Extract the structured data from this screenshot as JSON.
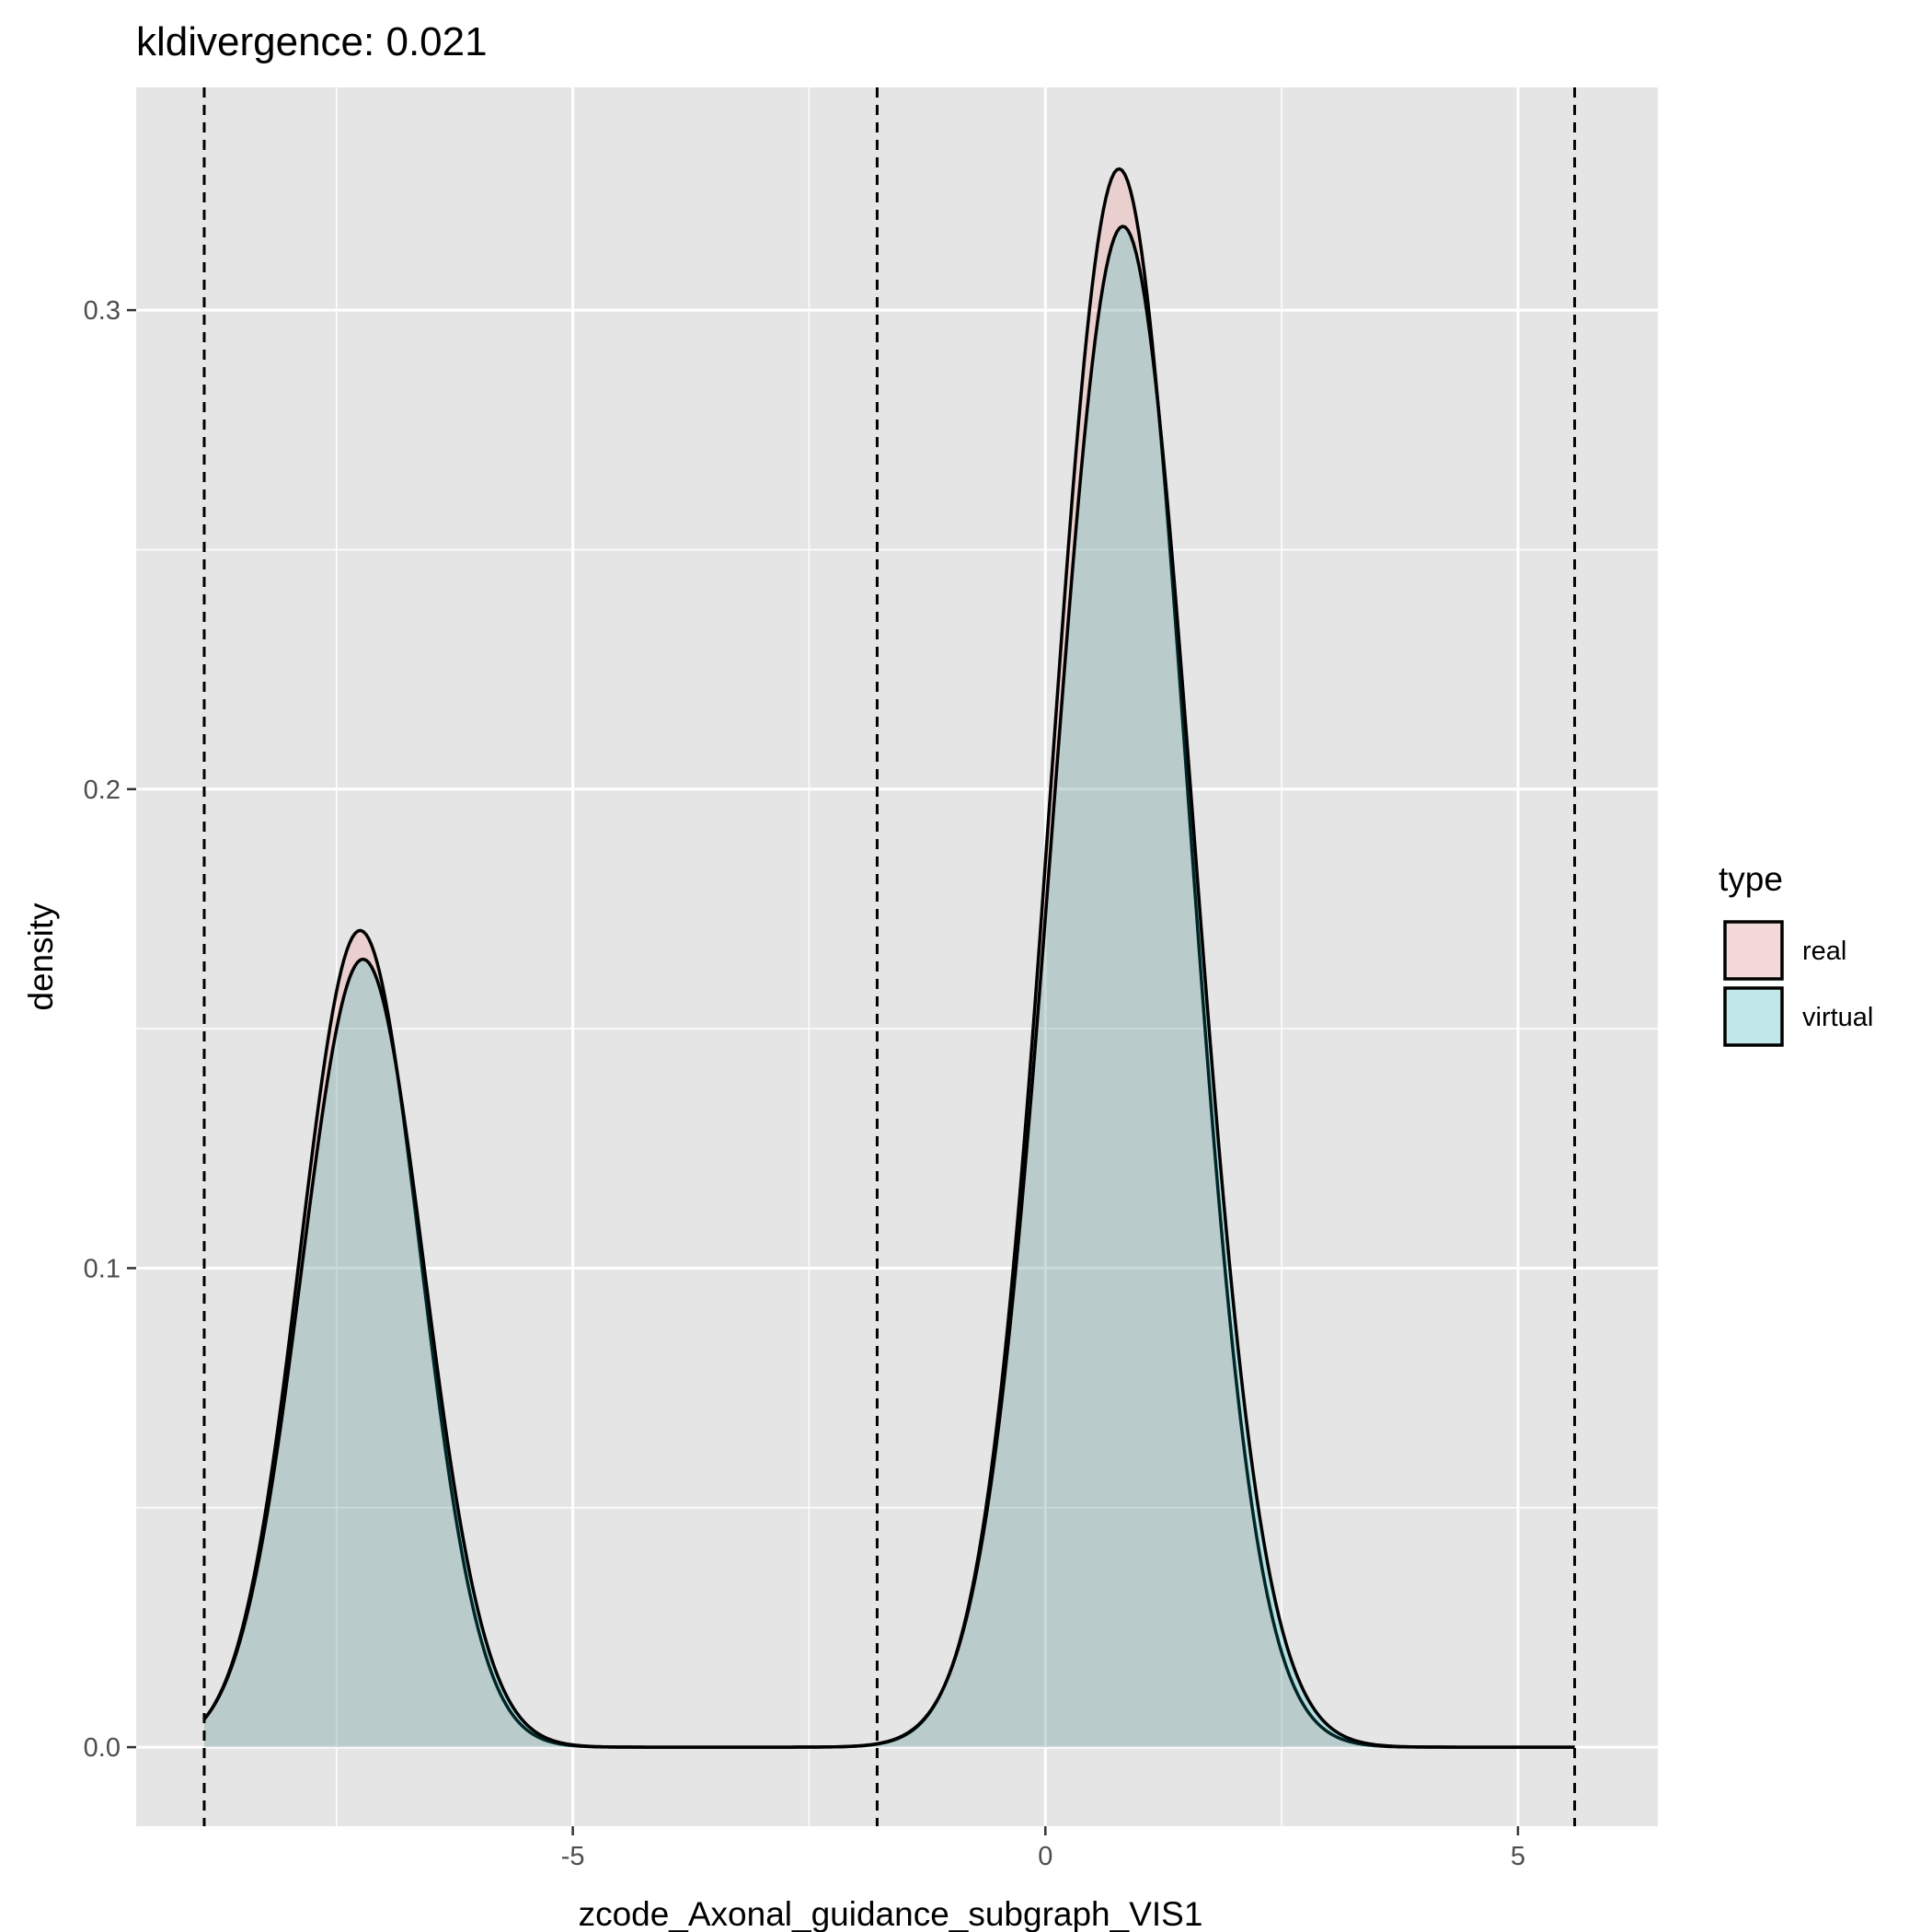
{
  "chart_data": {
    "type": "area",
    "title": "kldivergence: 0.021",
    "xlabel": "zcode_Axonal_guidance_subgraph_VIS1",
    "ylabel": "density",
    "xlim": [
      -9.62,
      6.48
    ],
    "ylim": [
      -0.0165,
      0.3465
    ],
    "x_ticks": [
      -5,
      0,
      5
    ],
    "x_tick_labels": [
      "-5",
      "0",
      "5"
    ],
    "x_minor_ticks": [
      -7.5,
      -2.5,
      2.5
    ],
    "y_ticks": [
      0.0,
      0.1,
      0.2,
      0.3
    ],
    "y_tick_labels": [
      "0.0",
      "0.1",
      "0.2",
      "0.3"
    ],
    "y_minor_ticks": [
      0.05,
      0.15,
      0.25
    ],
    "vlines": [
      -8.9,
      -1.78,
      5.6
    ],
    "grid": true,
    "legend": {
      "title": "type",
      "position": "right",
      "entries": [
        {
          "label": "real",
          "color": "#F8766D"
        },
        {
          "label": "virtual",
          "color": "#00BFC4"
        }
      ]
    },
    "x_range": [
      -8.9,
      5.6
    ],
    "series": [
      {
        "name": "real",
        "color": "#F8766D",
        "components": [
          {
            "mean": -7.25,
            "sd": 0.635,
            "peak": 0.1705
          },
          {
            "mean": 0.78,
            "sd": 0.725,
            "peak": 0.3295
          }
        ]
      },
      {
        "name": "virtual",
        "color": "#00BFC4",
        "components": [
          {
            "mean": -7.22,
            "sd": 0.65,
            "peak": 0.1645
          },
          {
            "mean": 0.82,
            "sd": 0.745,
            "peak": 0.3175
          }
        ]
      }
    ]
  }
}
